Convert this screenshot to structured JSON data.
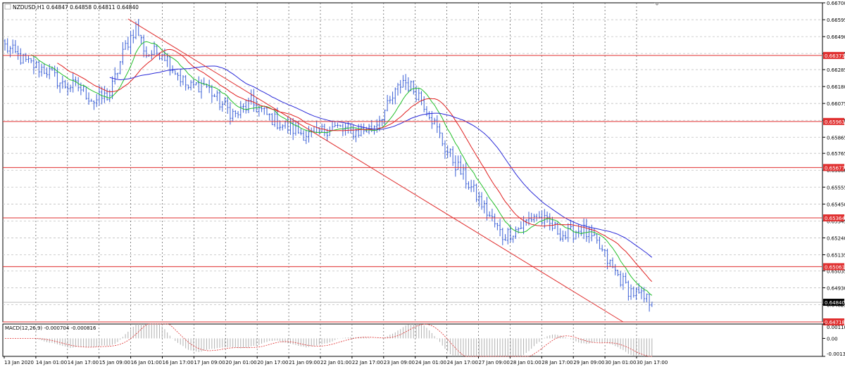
{
  "window": {
    "title": "NZDUSD,H1",
    "ohlc": "0.64847 0.64858 0.64811 0.64840"
  },
  "colors": {
    "grid": "#c0c0c0",
    "frame": "#000000",
    "candle": "#3a5fd6",
    "ma_fast": "#22c02a",
    "ma_mid": "#e02020",
    "ma_slow": "#2a2ad8",
    "level_line": "#e03030",
    "trend_line": "#e03030",
    "macd_hist": "#b0b0b0",
    "macd_signal": "#e03030",
    "tag_bg": "#e03030",
    "current_tag_bg": "#000000"
  },
  "chart_data": {
    "type": "line",
    "symbol": "NZDUSD",
    "timeframe": "H1",
    "ylim": [
      0.64718,
      0.667
    ],
    "price_ticks": [
      "0.66700",
      "0.66595",
      "0.66490",
      "0.66385",
      "0.66285",
      "0.66180",
      "0.66075",
      "0.65970",
      "0.65865",
      "0.65765",
      "0.65660",
      "0.65555",
      "0.65450",
      "0.65345",
      "0.65240",
      "0.65135",
      "0.65035",
      "0.64930",
      "0.64825"
    ],
    "time_labels": [
      "13 Jan 2020",
      "14 Jan 01:00",
      "14 Jan 17:00",
      "15 Jan 09:00",
      "16 Jan 01:00",
      "16 Jan 17:00",
      "17 Jan 09:00",
      "20 Jan 01:00",
      "20 Jan 17:00",
      "21 Jan 09:00",
      "22 Jan 01:00",
      "22 Jan 17:00",
      "23 Jan 09:00",
      "24 Jan 01:00",
      "24 Jan 17:00",
      "27 Jan 09:00",
      "28 Jan 01:00",
      "28 Jan 17:00",
      "29 Jan 09:00",
      "30 Jan 01:00",
      "30 Jan 17:00"
    ],
    "close_series_anchor": [
      [
        0,
        0.6643
      ],
      [
        8,
        0.6633
      ],
      [
        16,
        0.6628
      ],
      [
        22,
        0.6619
      ],
      [
        28,
        0.6618
      ],
      [
        34,
        0.6609
      ],
      [
        40,
        0.6613
      ],
      [
        46,
        0.6643
      ],
      [
        50,
        0.6655
      ],
      [
        54,
        0.6638
      ],
      [
        60,
        0.664
      ],
      [
        64,
        0.663
      ],
      [
        70,
        0.6617
      ],
      [
        76,
        0.662
      ],
      [
        82,
        0.6608
      ],
      [
        88,
        0.66
      ],
      [
        94,
        0.6608
      ],
      [
        100,
        0.66
      ],
      [
        106,
        0.6594
      ],
      [
        112,
        0.659
      ],
      [
        118,
        0.6587
      ],
      [
        124,
        0.6593
      ],
      [
        128,
        0.6592
      ],
      [
        134,
        0.659
      ],
      [
        140,
        0.6592
      ],
      [
        146,
        0.6605
      ],
      [
        152,
        0.6622
      ],
      [
        158,
        0.6613
      ],
      [
        162,
        0.6602
      ],
      [
        168,
        0.658
      ],
      [
        174,
        0.6565
      ],
      [
        180,
        0.655
      ],
      [
        186,
        0.6535
      ],
      [
        190,
        0.6525
      ],
      [
        196,
        0.653
      ],
      [
        202,
        0.6538
      ],
      [
        208,
        0.6532
      ],
      [
        214,
        0.6525
      ],
      [
        220,
        0.653
      ],
      [
        226,
        0.652
      ],
      [
        232,
        0.6505
      ],
      [
        238,
        0.6492
      ],
      [
        244,
        0.6486
      ],
      [
        248,
        0.6484
      ]
    ],
    "candles_count": 248,
    "moving_averages": [
      {
        "period": 10,
        "color": "#22c02a"
      },
      {
        "period": 20,
        "color": "#e02020"
      },
      {
        "period": 40,
        "color": "#2a2ad8"
      }
    ],
    "levels": [
      "0.66373",
      "0.65963",
      "0.65677",
      "0.65364",
      "0.65061",
      "0.64718"
    ],
    "current_price": "0.64840",
    "trend_line": {
      "from": {
        "bar": 47,
        "price": 0.666
      },
      "to": {
        "bar": 236,
        "price": 0.64718
      }
    },
    "macd": {
      "label": "MACD(12,26,9) -0.000704 -0.000816",
      "ticks": [
        "0.001101",
        "0.00",
        "-0.001378"
      ],
      "ylim": [
        -0.001378,
        0.001101
      ]
    }
  }
}
